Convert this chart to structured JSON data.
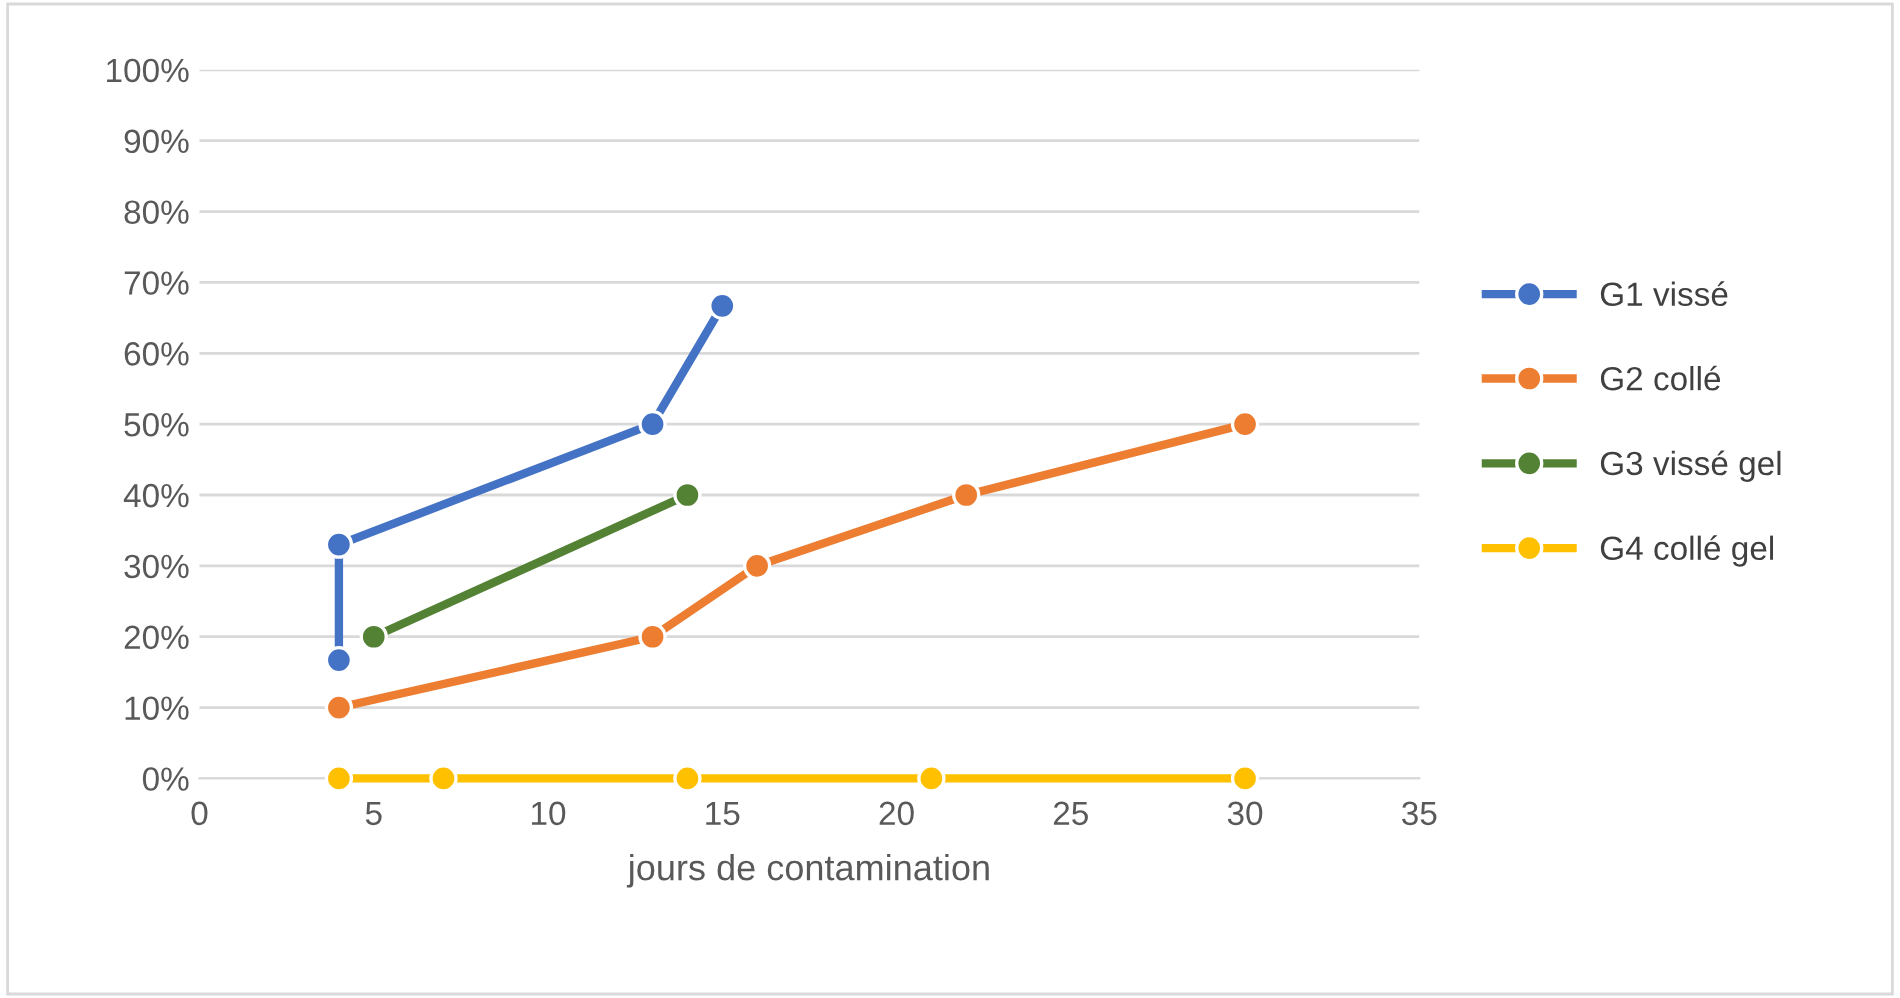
{
  "chart_data": {
    "type": "line",
    "xlabel": "jours de contamination",
    "series": [
      {
        "name": "G1 vissé",
        "color": "#4472c4",
        "x": [
          4,
          4,
          13,
          15
        ],
        "values": [
          16.7,
          33,
          50,
          66.7
        ]
      },
      {
        "name": "G2 collé",
        "color": "#ed7d31",
        "x": [
          4,
          13,
          16,
          22,
          30
        ],
        "values": [
          10,
          20,
          30,
          40,
          50
        ]
      },
      {
        "name": "G3 vissé gel",
        "color": "#548235",
        "x": [
          5,
          14
        ],
        "values": [
          20,
          40
        ]
      },
      {
        "name": "G4 collé gel",
        "color": "#ffc000",
        "x": [
          4,
          7,
          14,
          21,
          30
        ],
        "values": [
          0,
          0,
          0,
          0,
          0
        ]
      }
    ],
    "xlim": [
      0,
      35
    ],
    "xticks": [
      0,
      5,
      10,
      15,
      20,
      25,
      30,
      35
    ],
    "ylim": [
      0,
      100
    ],
    "yticks": [
      {
        "value": 0,
        "label": "0%"
      },
      {
        "value": 10,
        "label": "10%"
      },
      {
        "value": 20,
        "label": "20%"
      },
      {
        "value": 30,
        "label": "30%"
      },
      {
        "value": 40,
        "label": "40%"
      },
      {
        "value": 50,
        "label": "50%"
      },
      {
        "value": 60,
        "label": "60%"
      },
      {
        "value": 70,
        "label": "70%"
      },
      {
        "value": 80,
        "label": "80%"
      },
      {
        "value": 90,
        "label": "90%"
      },
      {
        "value": 100,
        "label": "100%"
      }
    ],
    "grid": "y",
    "legend": "right",
    "marker": "circle",
    "line_style": "solid"
  }
}
